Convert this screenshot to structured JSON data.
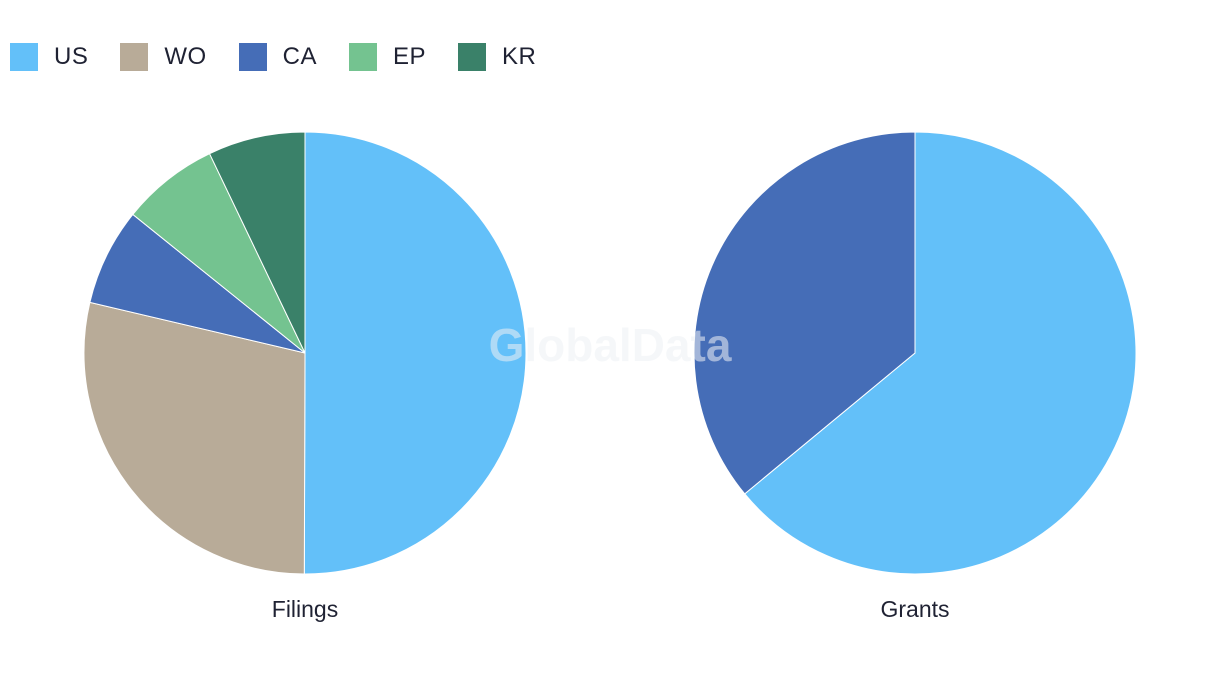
{
  "legend": [
    {
      "label": "US",
      "color": "#63c0f9"
    },
    {
      "label": "WO",
      "color": "#b8ab98"
    },
    {
      "label": "CA",
      "color": "#456db7"
    },
    {
      "label": "EP",
      "color": "#74c390"
    },
    {
      "label": "KR",
      "color": "#3a8169"
    }
  ],
  "watermark": "GlobalData",
  "chart_data": [
    {
      "type": "pie",
      "title": "Filings",
      "labels": [
        "US",
        "WO",
        "CA",
        "EP",
        "KR"
      ],
      "values": [
        50,
        28.6,
        7.1,
        7.1,
        7.1
      ],
      "colors": [
        "#63c0f9",
        "#b8ab98",
        "#456db7",
        "#74c390",
        "#3a8169"
      ],
      "start_angle": "12 o'clock",
      "direction": "clockwise"
    },
    {
      "type": "pie",
      "title": "Grants",
      "labels": [
        "US",
        "CA"
      ],
      "values": [
        64,
        36
      ],
      "colors": [
        "#63c0f9",
        "#456db7"
      ],
      "start_angle": "12 o'clock",
      "direction": "clockwise"
    }
  ]
}
